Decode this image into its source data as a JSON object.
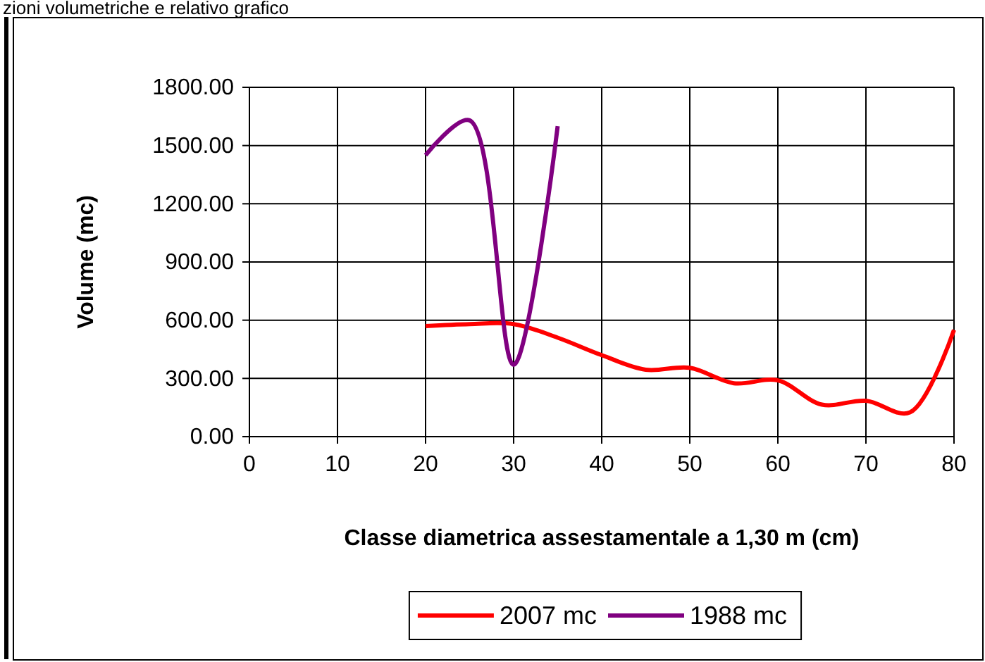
{
  "chart_data": {
    "type": "line",
    "annotations": [
      "zioni volumetriche e relativo grafico"
    ],
    "xlabel": "Classe diametrica assestamentale a 1,30 m (cm)",
    "ylabel": "Volume (mc)",
    "xlim": [
      0,
      80
    ],
    "xticks": [
      0,
      10,
      20,
      30,
      40,
      50,
      60,
      70,
      80
    ],
    "ylim": [
      0,
      1800
    ],
    "yticks": [
      {
        "value": 0,
        "label": "0.00"
      },
      {
        "value": 300,
        "label": "300.00"
      },
      {
        "value": 600,
        "label": "600.00"
      },
      {
        "value": 900,
        "label": "900.00"
      },
      {
        "value": 1200,
        "label": "1200.00"
      },
      {
        "value": 1500,
        "label": "1500.00"
      },
      {
        "value": 1800,
        "label": "1800.00"
      }
    ],
    "grid": true,
    "legend": "bottom",
    "marker": "none",
    "line_style": "solid",
    "series": [
      {
        "name": "2007 mc",
        "color": "#ff0000",
        "x": [
          20,
          25,
          30,
          35,
          40,
          45,
          50,
          55,
          60,
          65,
          70,
          75,
          80
        ],
        "values": [
          570,
          580,
          580,
          510,
          420,
          345,
          355,
          275,
          290,
          165,
          185,
          125,
          550
        ]
      },
      {
        "name": "1988 mc",
        "color": "#800080",
        "x": [
          20,
          25,
          30,
          35
        ],
        "values": [
          1450,
          1630,
          370,
          1600
        ]
      }
    ]
  }
}
